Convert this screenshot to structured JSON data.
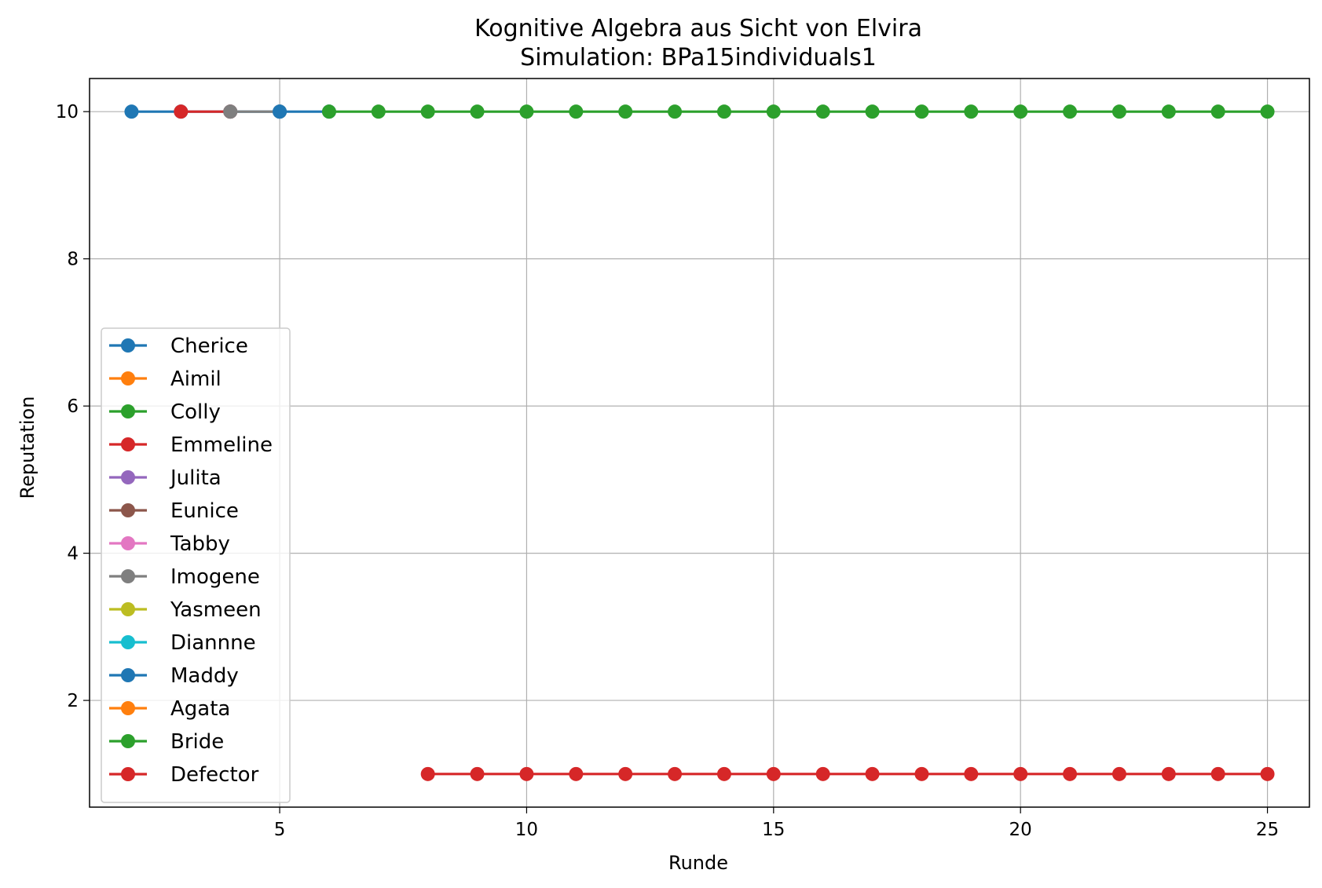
{
  "chart_data": {
    "type": "line",
    "title": "Kognitive Algebra aus Sicht von Elvira",
    "subtitle": "Simulation: BPa15individuals1",
    "xlabel": "Runde",
    "ylabel": "Reputation",
    "xlim": [
      1.15,
      25.85
    ],
    "ylim": [
      0.55,
      10.45
    ],
    "xticks": [
      5,
      10,
      15,
      20,
      25
    ],
    "yticks": [
      2,
      4,
      6,
      8,
      10
    ],
    "grid": true,
    "legend_position": "lower left",
    "series": [
      {
        "name": "Cherice",
        "color": "#1f77b4",
        "x": [
          2,
          3,
          4,
          5
        ],
        "y": [
          10,
          10,
          10,
          10
        ]
      },
      {
        "name": "Aimil",
        "color": "#ff7f0e",
        "x": [],
        "y": []
      },
      {
        "name": "Colly",
        "color": "#2ca02c",
        "x": [],
        "y": []
      },
      {
        "name": "Emmeline",
        "color": "#d62728",
        "x": [
          3,
          4
        ],
        "y": [
          10,
          10
        ]
      },
      {
        "name": "Julita",
        "color": "#9467bd",
        "x": [],
        "y": []
      },
      {
        "name": "Eunice",
        "color": "#8c564b",
        "x": [],
        "y": []
      },
      {
        "name": "Tabby",
        "color": "#e377c2",
        "x": [],
        "y": []
      },
      {
        "name": "Imogene",
        "color": "#7f7f7f",
        "x": [
          4,
          5
        ],
        "y": [
          10,
          10
        ]
      },
      {
        "name": "Yasmeen",
        "color": "#bcbd22",
        "x": [],
        "y": []
      },
      {
        "name": "Diannne",
        "color": "#17becf",
        "x": [],
        "y": []
      },
      {
        "name": "Maddy",
        "color": "#1f77b4",
        "x": [
          5,
          6
        ],
        "y": [
          10,
          10
        ]
      },
      {
        "name": "Agata",
        "color": "#ff7f0e",
        "x": [],
        "y": []
      },
      {
        "name": "Bride",
        "color": "#2ca02c",
        "x": [
          6,
          7,
          8,
          9,
          10,
          11,
          12,
          13,
          14,
          15,
          16,
          17,
          18,
          19,
          20,
          21,
          22,
          23,
          24,
          25
        ],
        "y": [
          10,
          10,
          10,
          10,
          10,
          10,
          10,
          10,
          10,
          10,
          10,
          10,
          10,
          10,
          10,
          10,
          10,
          10,
          10,
          10
        ]
      },
      {
        "name": "Defector",
        "color": "#d62728",
        "x": [
          8,
          9,
          10,
          11,
          12,
          13,
          14,
          15,
          16,
          17,
          18,
          19,
          20,
          21,
          22,
          23,
          24,
          25
        ],
        "y": [
          1,
          1,
          1,
          1,
          1,
          1,
          1,
          1,
          1,
          1,
          1,
          1,
          1,
          1,
          1,
          1,
          1,
          1
        ]
      }
    ]
  }
}
